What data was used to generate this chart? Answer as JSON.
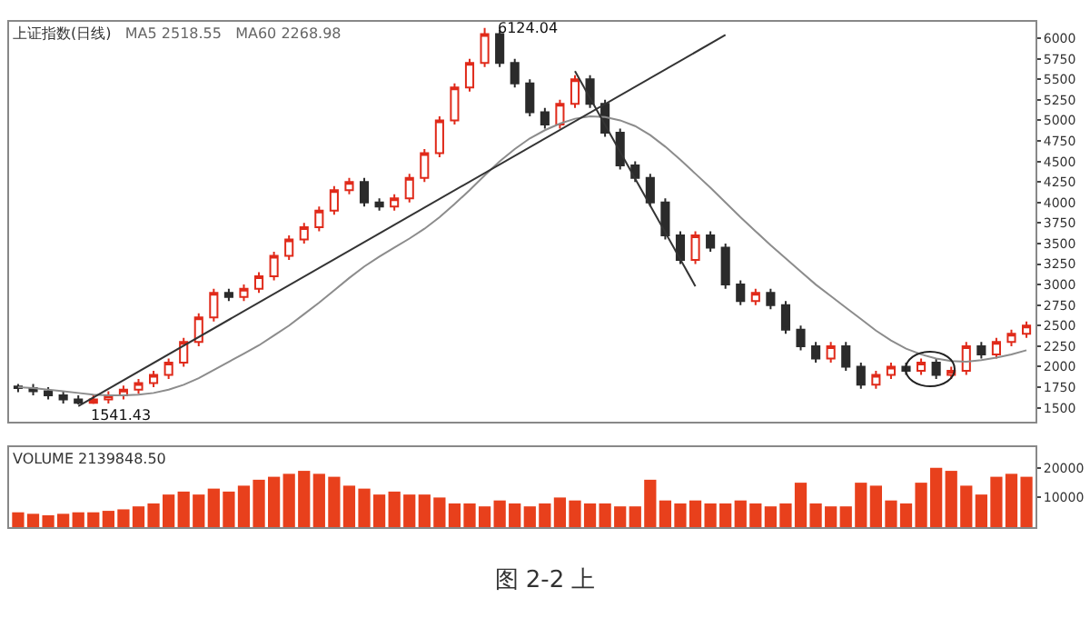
{
  "chart_data": [
    {
      "type": "candlestick",
      "title": "上证指数(日线)",
      "subtitle": "MA5 2518.55   MA60 2268.98",
      "categories": [
        null,
        null,
        null,
        null,
        null,
        null,
        null,
        null,
        null,
        null,
        null,
        null,
        null,
        null,
        null,
        null,
        null,
        null,
        null,
        null,
        null,
        null,
        null,
        null,
        null,
        null,
        null,
        null,
        null,
        null,
        null,
        null,
        null,
        null,
        null,
        null,
        null,
        null,
        null,
        null,
        null,
        null,
        null,
        null,
        null,
        null,
        null,
        null,
        null,
        null,
        null,
        null,
        null,
        null,
        null,
        null,
        null,
        null,
        null,
        null,
        null,
        null,
        null,
        null,
        null,
        null,
        null,
        null
      ],
      "ohlc": [
        [
          1760,
          1790,
          1690,
          1740
        ],
        [
          1740,
          1790,
          1650,
          1700
        ],
        [
          1700,
          1750,
          1600,
          1650
        ],
        [
          1650,
          1700,
          1550,
          1600
        ],
        [
          1600,
          1650,
          1541.43,
          1560
        ],
        [
          1560,
          1650,
          1545,
          1600
        ],
        [
          1600,
          1700,
          1550,
          1650
        ],
        [
          1650,
          1770,
          1600,
          1720
        ],
        [
          1720,
          1850,
          1670,
          1800
        ],
        [
          1800,
          1950,
          1750,
          1900
        ],
        [
          1900,
          2100,
          1850,
          2050
        ],
        [
          2050,
          2350,
          2000,
          2300
        ],
        [
          2300,
          2650,
          2250,
          2600
        ],
        [
          2600,
          2950,
          2550,
          2900
        ],
        [
          2900,
          2950,
          2800,
          2850
        ],
        [
          2850,
          3000,
          2800,
          2950
        ],
        [
          2950,
          3150,
          2900,
          3100
        ],
        [
          3100,
          3400,
          3050,
          3350
        ],
        [
          3350,
          3600,
          3300,
          3550
        ],
        [
          3550,
          3750,
          3500,
          3700
        ],
        [
          3700,
          3950,
          3650,
          3900
        ],
        [
          3900,
          4200,
          3850,
          4150
        ],
        [
          4150,
          4300,
          4100,
          4250
        ],
        [
          4250,
          4300,
          3950,
          4000
        ],
        [
          4000,
          4050,
          3900,
          3950
        ],
        [
          3950,
          4100,
          3900,
          4050
        ],
        [
          4050,
          4350,
          4000,
          4300
        ],
        [
          4300,
          4650,
          4250,
          4600
        ],
        [
          4600,
          5050,
          4550,
          5000
        ],
        [
          5000,
          5450,
          4950,
          5400
        ],
        [
          5400,
          5750,
          5350,
          5700
        ],
        [
          5700,
          6124.04,
          5650,
          6050
        ],
        [
          6050,
          6100,
          5650,
          5700
        ],
        [
          5700,
          5750,
          5400,
          5450
        ],
        [
          5450,
          5500,
          5050,
          5100
        ],
        [
          5100,
          5150,
          4900,
          4950
        ],
        [
          4950,
          5250,
          4900,
          5200
        ],
        [
          5200,
          5550,
          5150,
          5500
        ],
        [
          5500,
          5550,
          5150,
          5200
        ],
        [
          5200,
          5250,
          4800,
          4850
        ],
        [
          4850,
          4900,
          4400,
          4450
        ],
        [
          4450,
          4500,
          4250,
          4300
        ],
        [
          4300,
          4350,
          3950,
          4000
        ],
        [
          4000,
          4050,
          3550,
          3600
        ],
        [
          3600,
          3650,
          3250,
          3300
        ],
        [
          3300,
          3650,
          3250,
          3600
        ],
        [
          3600,
          3650,
          3400,
          3450
        ],
        [
          3450,
          3500,
          2950,
          3000
        ],
        [
          3000,
          3050,
          2750,
          2800
        ],
        [
          2800,
          2950,
          2750,
          2900
        ],
        [
          2900,
          2950,
          2700,
          2750
        ],
        [
          2750,
          2800,
          2400,
          2450
        ],
        [
          2450,
          2500,
          2200,
          2250
        ],
        [
          2250,
          2300,
          2050,
          2100
        ],
        [
          2100,
          2300,
          2050,
          2250
        ],
        [
          2250,
          2300,
          1950,
          2000
        ],
        [
          2000,
          2050,
          1730,
          1780
        ],
        [
          1780,
          1950,
          1730,
          1900
        ],
        [
          1900,
          2050,
          1850,
          2000
        ],
        [
          2000,
          2050,
          1900,
          1950
        ],
        [
          1950,
          2100,
          1900,
          2050
        ],
        [
          2050,
          2100,
          1850,
          1900
        ],
        [
          1900,
          2000,
          1850,
          1950
        ],
        [
          1950,
          2300,
          1900,
          2250
        ],
        [
          2250,
          2300,
          2100,
          2150
        ],
        [
          2150,
          2350,
          2100,
          2300
        ],
        [
          2300,
          2450,
          2250,
          2400
        ],
        [
          2400,
          2550,
          2350,
          2500
        ]
      ],
      "series": [
        {
          "type": "line",
          "color": "#8c8c8c",
          "values": [
            1750,
            1740,
            1720,
            1700,
            1680,
            1660,
            1650,
            1650,
            1660,
            1680,
            1720,
            1780,
            1860,
            1960,
            2060,
            2160,
            2260,
            2380,
            2500,
            2640,
            2780,
            2930,
            3080,
            3220,
            3340,
            3450,
            3560,
            3680,
            3820,
            3980,
            4150,
            4330,
            4500,
            4650,
            4780,
            4880,
            4960,
            5020,
            5050,
            5040,
            5000,
            4930,
            4820,
            4680,
            4520,
            4350,
            4180,
            4000,
            3820,
            3650,
            3480,
            3320,
            3160,
            3000,
            2860,
            2720,
            2580,
            2440,
            2320,
            2220,
            2150,
            2100,
            2070,
            2060,
            2080,
            2110,
            2150,
            2200
          ]
        },
        {
          "type": "line",
          "color": "#333333",
          "values": [
            null,
            null,
            null,
            null,
            1520,
            null,
            null,
            null,
            null,
            null,
            null,
            null,
            null,
            null,
            null,
            null,
            null,
            null,
            null,
            null,
            null,
            null,
            null,
            null,
            null,
            null,
            null,
            null,
            null,
            null,
            null,
            null,
            null,
            null,
            null,
            null,
            null,
            null,
            null,
            null,
            null,
            null,
            null,
            null,
            null,
            null,
            null,
            6040,
            null,
            null,
            null,
            null,
            null,
            null,
            null,
            null,
            null,
            null,
            null,
            null,
            null,
            null,
            null,
            null,
            null,
            null,
            null,
            null
          ]
        },
        {
          "type": "line",
          "color": "#333333",
          "values": [
            null,
            null,
            null,
            null,
            null,
            null,
            null,
            null,
            null,
            null,
            null,
            null,
            null,
            null,
            null,
            null,
            null,
            null,
            null,
            null,
            null,
            null,
            null,
            null,
            null,
            null,
            null,
            null,
            null,
            null,
            null,
            null,
            null,
            null,
            null,
            null,
            null,
            5600,
            null,
            null,
            null,
            null,
            null,
            null,
            null,
            2980,
            null,
            null,
            null,
            null,
            null,
            null,
            null,
            null,
            null,
            null,
            null,
            null,
            null,
            null,
            null,
            null,
            null,
            null,
            null,
            null,
            null,
            null
          ]
        }
      ],
      "annotations": [
        "6124.04",
        "1541.43"
      ],
      "ylim": [
        1330,
        6200
      ],
      "yticks": [
        1500,
        1750,
        2000,
        2250,
        2500,
        2750,
        3000,
        3250,
        3500,
        3750,
        4000,
        4250,
        4500,
        4750,
        5000,
        5250,
        5500,
        5750,
        6000
      ],
      "tick_labels": "y",
      "grid": false
    },
    {
      "type": "bar",
      "title": "VOLUME 2139848.50",
      "categories": [
        null,
        null,
        null,
        null,
        null,
        null,
        null,
        null,
        null,
        null,
        null,
        null,
        null,
        null,
        null,
        null,
        null,
        null,
        null,
        null,
        null,
        null,
        null,
        null,
        null,
        null,
        null,
        null,
        null,
        null,
        null,
        null,
        null,
        null,
        null,
        null,
        null,
        null,
        null,
        null,
        null,
        null,
        null,
        null,
        null,
        null,
        null,
        null,
        null,
        null,
        null,
        null,
        null,
        null,
        null,
        null,
        null,
        null,
        null,
        null,
        null,
        null,
        null,
        null,
        null,
        null,
        null,
        null
      ],
      "series": [
        {
          "color": "#e8401c",
          "values": [
            5000,
            4500,
            4000,
            4500,
            5000,
            5000,
            5500,
            6000,
            7000,
            8000,
            11000,
            12000,
            11000,
            13000,
            12000,
            14000,
            16000,
            17000,
            18000,
            19000,
            18000,
            17000,
            14000,
            13000,
            11000,
            12000,
            11000,
            11000,
            10000,
            8000,
            8000,
            7000,
            9000,
            8000,
            7000,
            8000,
            10000,
            9000,
            8000,
            8000,
            7000,
            7000,
            16000,
            9000,
            8000,
            9000,
            8000,
            8000,
            9000,
            8000,
            7000,
            8000,
            15000,
            8000,
            7000,
            7000,
            15000,
            14000,
            9000,
            8000,
            15000,
            20000,
            19000,
            14000,
            11000,
            17000,
            18000,
            17000
          ]
        }
      ],
      "ylim": [
        0,
        27000
      ],
      "yticks": [
        10000,
        20000
      ],
      "tick_labels": "y",
      "grid": false,
      "annotations": [
        "图 2-2 上"
      ]
    }
  ]
}
